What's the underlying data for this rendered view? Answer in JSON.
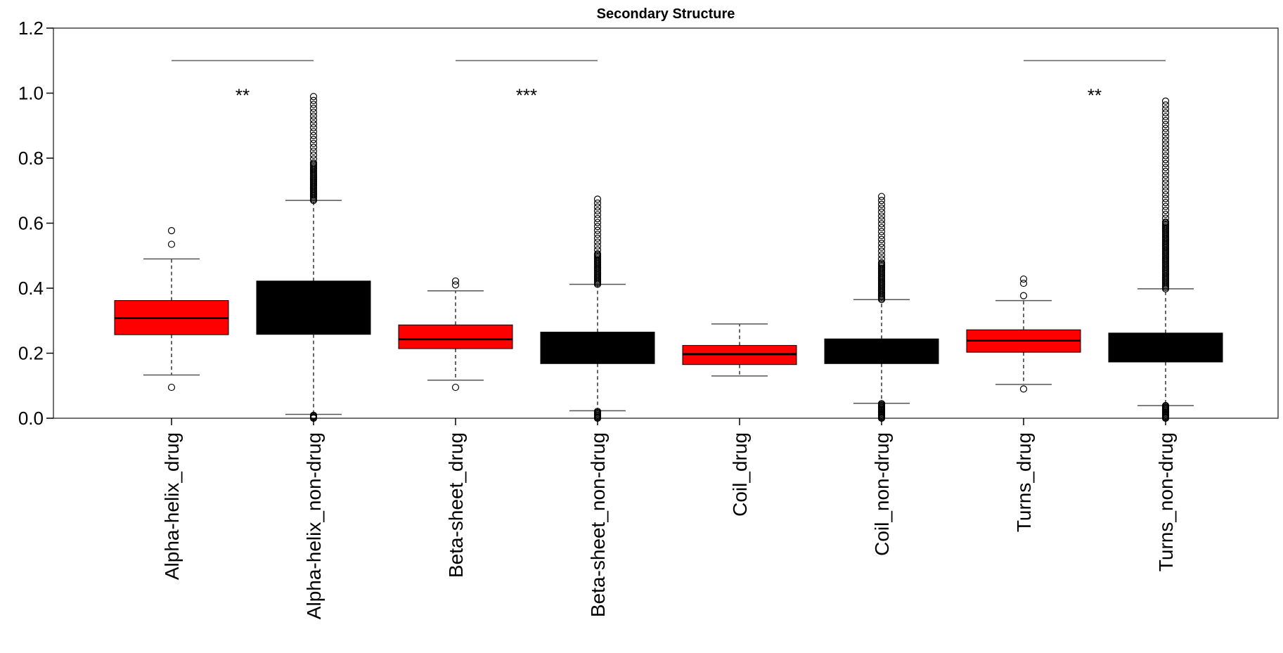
{
  "chart_data": {
    "type": "box",
    "title": "Secondary Structure",
    "xlabel": "",
    "ylabel": "",
    "ylim": [
      0,
      1.2
    ],
    "yticks": [
      "0.0",
      "0.2",
      "0.4",
      "0.6",
      "0.8",
      "1.0",
      "1.2"
    ],
    "grid": false,
    "colors": {
      "drug": "#ff0000",
      "non_drug": "#000000"
    },
    "categories": [
      "Alpha-helix_drug",
      "Alpha-helix_non-drug",
      "Beta-sheet_drug",
      "Beta-sheet_non-drug",
      "Coil_drug",
      "Coil_non-drug",
      "Turns_drug",
      "Turns_non-drug"
    ],
    "boxes": [
      {
        "name": "Alpha-helix_drug",
        "group": "drug",
        "whisker_low": 0.133,
        "q1": 0.257,
        "median": 0.308,
        "q3": 0.362,
        "whisker_high": 0.49,
        "outliers": [
          0.095,
          0.535,
          0.577
        ]
      },
      {
        "name": "Alpha-helix_non-drug",
        "group": "non_drug",
        "whisker_low": 0.012,
        "q1": 0.258,
        "median": 0.34,
        "q3": 0.422,
        "whisker_high": 0.67,
        "outliers_range": [
          0.67,
          1.0
        ],
        "outliers_low_range": [
          0.0,
          0.01
        ]
      },
      {
        "name": "Beta-sheet_drug",
        "group": "drug",
        "whisker_low": 0.117,
        "q1": 0.214,
        "median": 0.243,
        "q3": 0.287,
        "whisker_high": 0.392,
        "outliers": [
          0.095,
          0.41,
          0.422
        ]
      },
      {
        "name": "Beta-sheet_non-drug",
        "group": "non_drug",
        "whisker_low": 0.023,
        "q1": 0.168,
        "median": 0.215,
        "q3": 0.265,
        "whisker_high": 0.412,
        "outliers_range": [
          0.412,
          0.68
        ],
        "outliers_low_range": [
          0.0,
          0.023
        ]
      },
      {
        "name": "Coil_drug",
        "group": "drug",
        "whisker_low": 0.13,
        "q1": 0.165,
        "median": 0.197,
        "q3": 0.224,
        "whisker_high": 0.29,
        "outliers": []
      },
      {
        "name": "Coil_non-drug",
        "group": "non_drug",
        "whisker_low": 0.046,
        "q1": 0.168,
        "median": 0.205,
        "q3": 0.244,
        "whisker_high": 0.365,
        "outliers_range": [
          0.365,
          0.688
        ],
        "outliers_low_range": [
          0.0,
          0.046
        ]
      },
      {
        "name": "Turns_drug",
        "group": "drug",
        "whisker_low": 0.104,
        "q1": 0.203,
        "median": 0.239,
        "q3": 0.272,
        "whisker_high": 0.362,
        "outliers": [
          0.09,
          0.377,
          0.415,
          0.428
        ]
      },
      {
        "name": "Turns_non-drug",
        "group": "non_drug",
        "whisker_low": 0.039,
        "q1": 0.173,
        "median": 0.215,
        "q3": 0.262,
        "whisker_high": 0.398,
        "outliers_range": [
          0.398,
          0.985
        ],
        "outliers_low_range": [
          0.0,
          0.039
        ]
      }
    ],
    "significance": [
      {
        "from": 0,
        "to": 1,
        "y": 1.1,
        "label": "**",
        "label_y": 1.0
      },
      {
        "from": 2,
        "to": 3,
        "y": 1.1,
        "label": "***",
        "label_y": 1.0
      },
      {
        "from": 6,
        "to": 7,
        "y": 1.1,
        "label": "**",
        "label_y": 1.0
      }
    ]
  }
}
